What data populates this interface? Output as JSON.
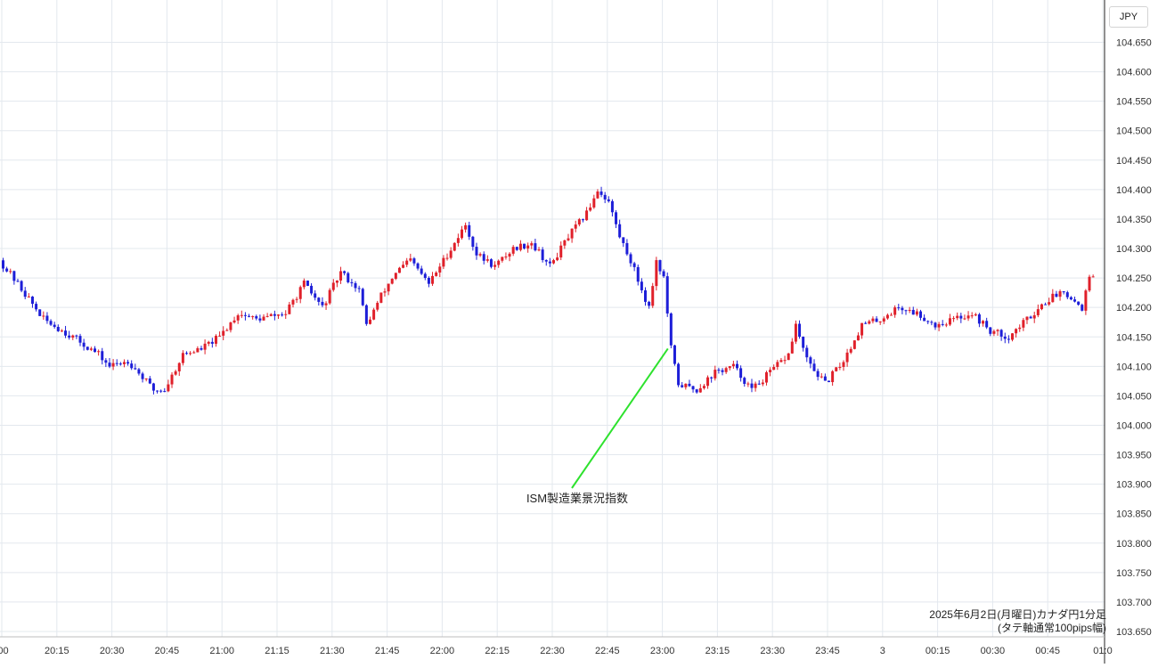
{
  "currency_label": "JPY",
  "chart_data": {
    "type": "candlestick",
    "title": "",
    "xlabel": "",
    "ylabel": "",
    "ylim": [
      103.645,
      104.705
    ],
    "grid": true,
    "y_ticks": [
      "104.650",
      "104.600",
      "104.550",
      "104.500",
      "104.450",
      "104.400",
      "104.350",
      "104.300",
      "104.250",
      "104.200",
      "104.150",
      "104.100",
      "104.050",
      "104.000",
      "103.950",
      "103.900",
      "103.850",
      "103.800",
      "103.750",
      "103.700",
      "103.650"
    ],
    "x_ticks": [
      ":00",
      "20:15",
      "20:30",
      "20:45",
      "21:00",
      "21:15",
      "21:30",
      "21:45",
      "22:00",
      "22:15",
      "22:30",
      "22:45",
      "23:00",
      "23:15",
      "23:30",
      "23:45",
      "3",
      "00:15",
      "00:30",
      "00:45",
      "01:0"
    ],
    "up_color": "#e0202a",
    "down_color": "#1d1ed8",
    "annotation": {
      "text": "ISM製造業景況指数",
      "time": "23:00",
      "price": 104.13
    },
    "notes": [
      "2025年6月2日(月曜日)カナダ円1分足",
      "(タテ軸通常100pips幅)"
    ],
    "price_path": [
      [
        0,
        104.28
      ],
      [
        5,
        104.24
      ],
      [
        12,
        104.18
      ],
      [
        20,
        104.15
      ],
      [
        27,
        104.12
      ],
      [
        30,
        104.1
      ],
      [
        35,
        104.11
      ],
      [
        42,
        104.06
      ],
      [
        45,
        104.06
      ],
      [
        50,
        104.12
      ],
      [
        55,
        104.13
      ],
      [
        60,
        104.15
      ],
      [
        65,
        104.19
      ],
      [
        70,
        104.18
      ],
      [
        78,
        104.19
      ],
      [
        83,
        104.24
      ],
      [
        88,
        104.2
      ],
      [
        93,
        104.26
      ],
      [
        98,
        104.23
      ],
      [
        100,
        104.17
      ],
      [
        104,
        104.22
      ],
      [
        108,
        104.26
      ],
      [
        112,
        104.28
      ],
      [
        117,
        104.24
      ],
      [
        122,
        104.29
      ],
      [
        127,
        104.34
      ],
      [
        130,
        104.29
      ],
      [
        135,
        104.27
      ],
      [
        140,
        104.3
      ],
      [
        145,
        104.31
      ],
      [
        150,
        104.27
      ],
      [
        155,
        104.32
      ],
      [
        160,
        104.36
      ],
      [
        163,
        104.4
      ],
      [
        166,
        104.38
      ],
      [
        169,
        104.32
      ],
      [
        172,
        104.28
      ],
      [
        175,
        104.23
      ],
      [
        177,
        104.2
      ],
      [
        179,
        104.28
      ],
      [
        181,
        104.25
      ],
      [
        183,
        104.13
      ],
      [
        185,
        104.07
      ],
      [
        190,
        104.06
      ],
      [
        195,
        104.09
      ],
      [
        200,
        104.1
      ],
      [
        205,
        104.06
      ],
      [
        210,
        104.09
      ],
      [
        215,
        104.12
      ],
      [
        217,
        104.17
      ],
      [
        220,
        104.11
      ],
      [
        225,
        104.07
      ],
      [
        230,
        104.11
      ],
      [
        235,
        104.17
      ],
      [
        240,
        104.18
      ],
      [
        245,
        104.2
      ],
      [
        250,
        104.19
      ],
      [
        255,
        104.17
      ],
      [
        260,
        104.18
      ],
      [
        265,
        104.19
      ],
      [
        270,
        104.16
      ],
      [
        275,
        104.15
      ],
      [
        280,
        104.18
      ],
      [
        285,
        104.21
      ],
      [
        290,
        104.23
      ],
      [
        293,
        104.21
      ],
      [
        295,
        104.2
      ],
      [
        297,
        104.25
      ]
    ]
  }
}
